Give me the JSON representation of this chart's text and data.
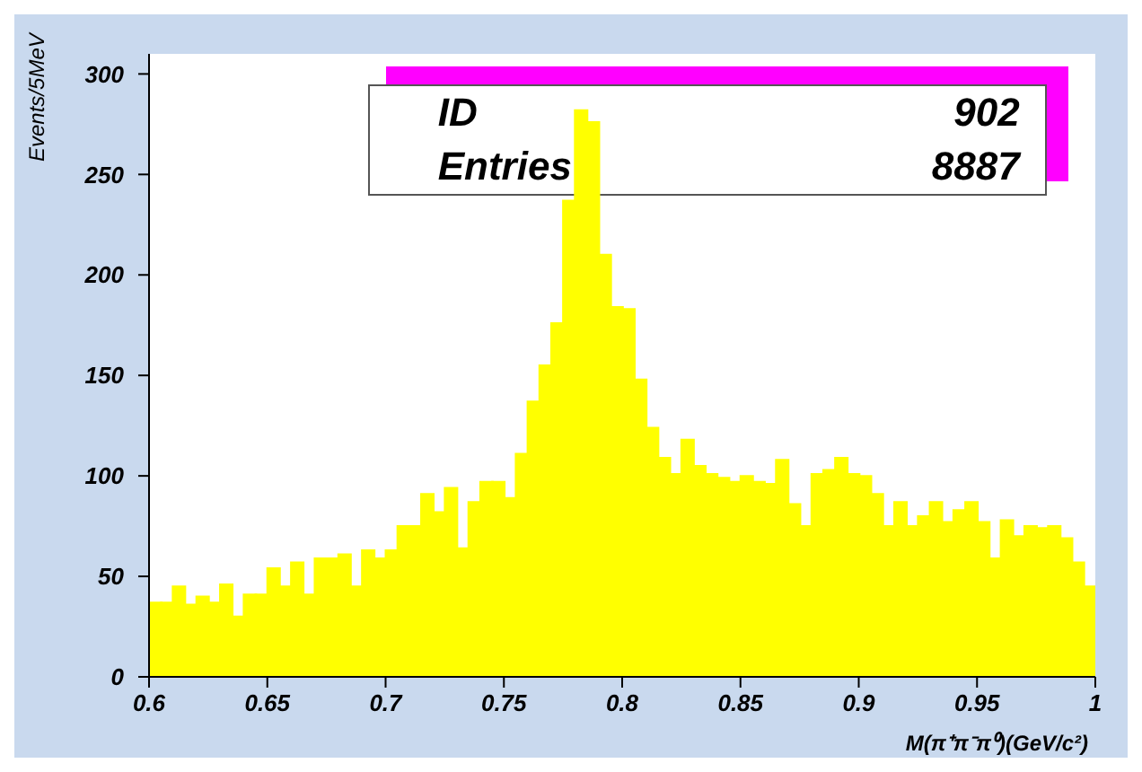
{
  "chart_data": {
    "type": "histogram",
    "xlabel": "M(π⁺π⁻π⁰)(GeV/c²)",
    "ylabel": "Events/5MeV",
    "annotations": [
      "ID",
      "902",
      "Entries",
      "8887"
    ],
    "color": "#ffff00",
    "bins": [
      0.6,
      0.605,
      0.61,
      0.615,
      0.62,
      0.625,
      0.63,
      0.635,
      0.64,
      0.645,
      0.65,
      0.655,
      0.66,
      0.665,
      0.67,
      0.675,
      0.68,
      0.685,
      0.69,
      0.695,
      0.7,
      0.705,
      0.71,
      0.715,
      0.72,
      0.725,
      0.73,
      0.735,
      0.74,
      0.745,
      0.75,
      0.755,
      0.76,
      0.765,
      0.77,
      0.775,
      0.78,
      0.785,
      0.79,
      0.795,
      0.8,
      0.805,
      0.81,
      0.815,
      0.82,
      0.825,
      0.83,
      0.835,
      0.84,
      0.845,
      0.85,
      0.855,
      0.86,
      0.865,
      0.87,
      0.875,
      0.88,
      0.885,
      0.89,
      0.895,
      0.9,
      0.905,
      0.91,
      0.915,
      0.92,
      0.925,
      0.93,
      0.935,
      0.94,
      0.945,
      0.95,
      0.955,
      0.96,
      0.965,
      0.97,
      0.975,
      0.98,
      0.985,
      0.99,
      0.995,
      1.0
    ],
    "values": [
      37,
      37,
      45,
      36,
      40,
      37,
      46,
      30,
      41,
      41,
      54,
      45,
      57,
      41,
      59,
      59,
      61,
      45,
      63,
      59,
      63,
      75,
      75,
      91,
      82,
      94,
      64,
      87,
      97,
      97,
      89,
      111,
      137,
      155,
      176,
      237,
      282,
      276,
      210,
      184,
      183,
      148,
      124,
      109,
      101,
      118,
      105,
      101,
      99,
      97,
      100,
      97,
      96,
      108,
      86,
      75,
      101,
      103,
      109,
      101,
      100,
      91,
      75,
      87,
      75,
      80,
      87,
      77,
      83,
      87,
      77,
      59,
      78,
      70,
      75,
      74,
      75,
      69,
      57,
      45
    ],
    "xlim": [
      0.6,
      1
    ],
    "xticks": [
      {
        "value": 0.6,
        "label": "0.6"
      },
      0.65,
      {
        "value": 0.7,
        "label": "0.7"
      },
      0.75,
      {
        "value": 0.8,
        "label": "0.8"
      },
      0.85,
      {
        "value": 0.9,
        "label": "0.9"
      },
      0.95,
      1
    ],
    "ylim": [
      0,
      310
    ],
    "yticks": [
      0,
      50,
      100,
      150,
      200,
      250,
      300
    ],
    "grid": false,
    "legend": false
  }
}
